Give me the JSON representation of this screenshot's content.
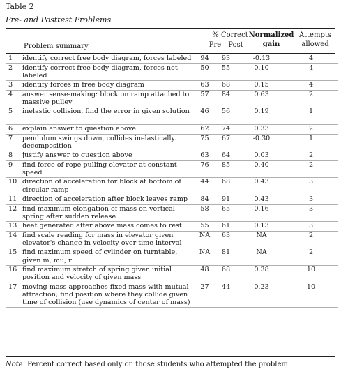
{
  "table": {
    "label": "Table 2",
    "caption": "Pre- and Posttest Problems",
    "headers": {
      "percent_correct": "% Correct",
      "pre": "Pre",
      "post": "Post",
      "normalized": "Normalized",
      "gain": "gain",
      "attempts": "Attempts",
      "allowed": "allowed",
      "problem_summary": "Problem summary"
    },
    "rows": [
      {
        "num": "1",
        "summary": "identify correct free body diagram, forces labeled",
        "pre": "94",
        "post": "93",
        "gain": "-0.13",
        "attempts": "4"
      },
      {
        "num": "2",
        "summary": "identify correct free body diagram, forces not labeled",
        "pre": "50",
        "post": "55",
        "gain": "0.10",
        "attempts": "4"
      },
      {
        "num": "3",
        "summary": "identify forces in free body diagram",
        "pre": "63",
        "post": "68",
        "gain": "0.15",
        "attempts": "4"
      },
      {
        "num": "4",
        "summary": "answer sense-making: block on ramp attached to massive pulley",
        "pre": "57",
        "post": "84",
        "gain": "0.63",
        "attempts": "2"
      },
      {
        "num": "5",
        "summary": "inelastic collision, find the error in given solution",
        "pre": "46",
        "post": "56",
        "gain": "0.19",
        "attempts": "1"
      },
      {
        "num": "6",
        "summary": "explain answer to question above",
        "pre": "62",
        "post": "74",
        "gain": "0.33",
        "attempts": "2"
      },
      {
        "num": "7",
        "summary": "pendulum swings down, collides inelastically. decomposition",
        "pre": "75",
        "post": "67",
        "gain": "-0.30",
        "attempts": "1"
      },
      {
        "num": "8",
        "summary": "justify answer to question above",
        "pre": "63",
        "post": "64",
        "gain": "0.03",
        "attempts": "2"
      },
      {
        "num": "9",
        "summary": "find force of rope pulling elevator at constant speed",
        "pre": "76",
        "post": "85",
        "gain": "0.40",
        "attempts": "2"
      },
      {
        "num": "10",
        "summary": "direction of acceleration for block at bottom of circular ramp",
        "pre": "44",
        "post": "68",
        "gain": "0.43",
        "attempts": "3"
      },
      {
        "num": "11",
        "summary": "direction of acceleration after block leaves ramp",
        "pre": "84",
        "post": "91",
        "gain": "0.43",
        "attempts": "3"
      },
      {
        "num": "12",
        "summary": "find maximum elongation of mass on vertical spring after sudden release",
        "pre": "58",
        "post": "65",
        "gain": "0.16",
        "attempts": "3"
      },
      {
        "num": "13",
        "summary": "heat generated after above mass comes to rest",
        "pre": "55",
        "post": "61",
        "gain": "0.13",
        "attempts": "3"
      },
      {
        "num": "14",
        "summary": "find scale reading for mass in elevator given elevator's change in velocity over time interval",
        "pre": "NA",
        "post": "63",
        "gain": "NA",
        "attempts": "2"
      },
      {
        "num": "15",
        "summary": "find maximum speed of cylinder on turntable, given m, mu, r",
        "pre": "NA",
        "post": "81",
        "gain": "NA",
        "attempts": "2"
      },
      {
        "num": "16",
        "summary": "find maximum stretch of spring given initial position and velocity of given mass",
        "pre": "48",
        "post": "68",
        "gain": "0.38",
        "attempts": "10"
      },
      {
        "num": "17",
        "summary": "moving mass approaches fixed mass with mutual attraction; find position where they collide given time of collision (use dynamics of center of mass)",
        "pre": "27",
        "post": "44",
        "gain": "0.23",
        "attempts": "10"
      }
    ]
  },
  "note": {
    "label": "Note.",
    "text": " Percent correct based only on those students who attempted the problem."
  }
}
